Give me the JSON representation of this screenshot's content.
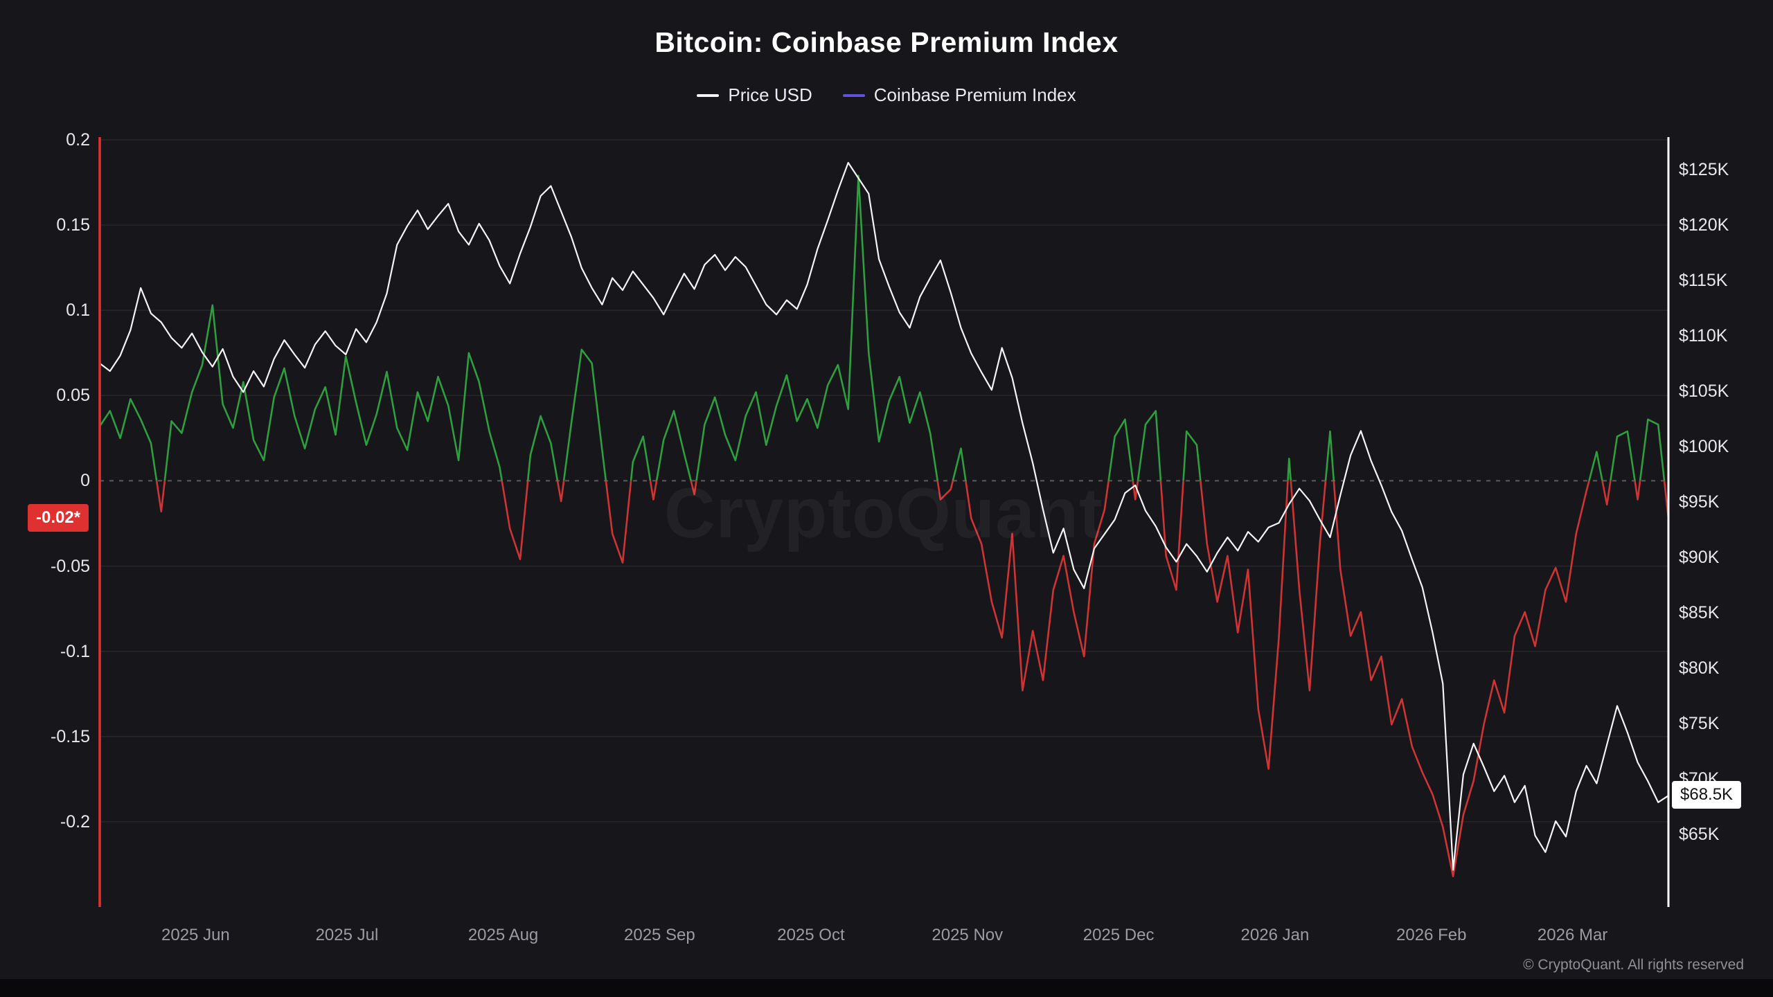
{
  "title": "Bitcoin: Coinbase Premium Index",
  "watermark": "CryptoQuant",
  "copyright": "© CryptoQuant. All rights reserved",
  "legend": {
    "items": [
      {
        "label": "Price USD",
        "color": "#f5f5f5"
      },
      {
        "label": "Coinbase Premium Index",
        "color": "#6053d8"
      }
    ]
  },
  "badges": {
    "premium_current": {
      "text": "-0.02*",
      "value": -0.022,
      "bg": "#e03131",
      "fg": "#ffffff"
    },
    "price_current": {
      "text": "$68.5K",
      "value_k": 68.5,
      "bg": "#ffffff",
      "fg": "#141414"
    }
  },
  "colors": {
    "background": "#17171b",
    "bottom_bar": "#09090b",
    "grid_faint": "rgba(255,255,255,0.07)",
    "zero_dashed": "rgba(255,255,255,0.30)",
    "left_edge_line": "#e03131",
    "right_edge_line": "#ffffff",
    "x_label": "#9b9ba1"
  },
  "chart_data": {
    "type": "line",
    "title": "Bitcoin: Coinbase Premium Index",
    "x_start": "2025-05-13",
    "x_end": "2026-03-20",
    "legend_position": "top-center",
    "grid": "faint horizontal lines at left-axis ticks; dashed line at 0; red vertical line at left edge; white vertical line at right edge",
    "x_ticks": [
      {
        "label": "2025 Jun",
        "f": 0.0611
      },
      {
        "label": "2025 Jul",
        "f": 0.1576
      },
      {
        "label": "2025 Aug",
        "f": 0.2572
      },
      {
        "label": "2025 Sep",
        "f": 0.3569
      },
      {
        "label": "2025 Oct",
        "f": 0.4534
      },
      {
        "label": "2025 Nov",
        "f": 0.5531
      },
      {
        "label": "2025 Dec",
        "f": 0.6495
      },
      {
        "label": "2026 Jan",
        "f": 0.7492
      },
      {
        "label": "2026 Feb",
        "f": 0.8489
      },
      {
        "label": "2026 Mar",
        "f": 0.9389
      }
    ],
    "left_axis": {
      "name": "Coinbase Premium Index",
      "range": [
        -0.25,
        0.2
      ],
      "zero_line": "dashed",
      "ticks": [
        {
          "label": "0.2",
          "value": 0.2
        },
        {
          "label": "0.15",
          "value": 0.15
        },
        {
          "label": "0.1",
          "value": 0.1
        },
        {
          "label": "0.05",
          "value": 0.05
        },
        {
          "label": "0",
          "value": 0
        },
        {
          "label": "-0.05",
          "value": -0.05
        },
        {
          "label": "-0.1",
          "value": -0.1
        },
        {
          "label": "-0.15",
          "value": -0.15
        },
        {
          "label": "-0.2",
          "value": -0.2
        }
      ]
    },
    "right_axis": {
      "name": "Price USD",
      "range_k": [
        58.5,
        128
      ],
      "ticks": [
        {
          "label": "$125K",
          "value_k": 125
        },
        {
          "label": "$120K",
          "value_k": 120
        },
        {
          "label": "$115K",
          "value_k": 115
        },
        {
          "label": "$110K",
          "value_k": 110
        },
        {
          "label": "$105K",
          "value_k": 105
        },
        {
          "label": "$100K",
          "value_k": 100
        },
        {
          "label": "$95K",
          "value_k": 95
        },
        {
          "label": "$90K",
          "value_k": 90
        },
        {
          "label": "$85K",
          "value_k": 85
        },
        {
          "label": "$80K",
          "value_k": 80
        },
        {
          "label": "$75K",
          "value_k": 75
        },
        {
          "label": "$70K",
          "value_k": 70
        },
        {
          "label": "$65K",
          "value_k": 65
        }
      ]
    },
    "series": [
      {
        "name": "Price USD",
        "axis": "right",
        "unit": "USD (thousands)",
        "color": "#f5f5f5",
        "values_k": [
          107.5,
          106.8,
          108.2,
          110.5,
          114.3,
          112.0,
          111.2,
          109.8,
          108.9,
          110.2,
          108.5,
          107.2,
          108.8,
          106.3,
          104.9,
          106.8,
          105.4,
          107.9,
          109.6,
          108.3,
          107.1,
          109.2,
          110.4,
          109.1,
          108.3,
          110.6,
          109.4,
          111.2,
          113.8,
          118.2,
          119.9,
          121.3,
          119.6,
          120.8,
          121.9,
          119.4,
          118.2,
          120.1,
          118.6,
          116.3,
          114.7,
          117.4,
          119.8,
          122.6,
          123.5,
          121.2,
          118.9,
          116.1,
          114.3,
          112.8,
          115.2,
          114.1,
          115.8,
          114.6,
          113.4,
          111.9,
          113.8,
          115.6,
          114.2,
          116.4,
          117.3,
          115.9,
          117.1,
          116.2,
          114.5,
          112.8,
          111.9,
          113.2,
          112.4,
          114.6,
          117.8,
          120.4,
          123.1,
          125.6,
          124.2,
          122.8,
          116.9,
          114.4,
          112.1,
          110.7,
          113.5,
          115.2,
          116.8,
          113.9,
          110.7,
          108.4,
          106.7,
          105.1,
          108.9,
          106.2,
          102.1,
          98.5,
          94.3,
          90.4,
          92.6,
          88.9,
          87.2,
          90.8,
          92.1,
          93.4,
          95.8,
          96.5,
          94.2,
          92.8,
          90.9,
          89.6,
          91.2,
          90.1,
          88.7,
          90.4,
          91.8,
          90.6,
          92.3,
          91.4,
          92.7,
          93.1,
          94.8,
          96.2,
          95.1,
          93.4,
          91.8,
          95.6,
          99.2,
          101.4,
          98.7,
          96.5,
          94.1,
          92.4,
          89.8,
          87.3,
          83.2,
          78.6,
          61.8,
          70.4,
          73.2,
          71.1,
          68.9,
          70.3,
          67.9,
          69.4,
          64.9,
          63.4,
          66.2,
          64.8,
          68.9,
          71.2,
          69.6,
          73.1,
          76.6,
          74.2,
          71.5,
          69.8,
          67.9,
          68.5
        ]
      },
      {
        "name": "Coinbase Premium Index",
        "axis": "left",
        "positive_color": "#2e9e3f",
        "negative_color": "#cf3434",
        "values": [
          0.032,
          0.041,
          0.025,
          0.048,
          0.036,
          0.022,
          -0.018,
          0.035,
          0.028,
          0.052,
          0.068,
          0.103,
          0.045,
          0.031,
          0.058,
          0.024,
          0.012,
          0.049,
          0.066,
          0.038,
          0.019,
          0.042,
          0.055,
          0.027,
          0.073,
          0.046,
          0.021,
          0.039,
          0.064,
          0.031,
          0.018,
          0.052,
          0.035,
          0.061,
          0.044,
          0.012,
          0.075,
          0.058,
          0.029,
          0.008,
          -0.028,
          -0.046,
          0.015,
          0.038,
          0.022,
          -0.012,
          0.034,
          0.077,
          0.069,
          0.018,
          -0.031,
          -0.048,
          0.011,
          0.026,
          -0.011,
          0.024,
          0.041,
          0.016,
          -0.008,
          0.033,
          0.049,
          0.027,
          0.012,
          0.038,
          0.052,
          0.021,
          0.044,
          0.062,
          0.035,
          0.048,
          0.031,
          0.056,
          0.068,
          0.042,
          0.179,
          0.075,
          0.023,
          0.047,
          0.061,
          0.034,
          0.052,
          0.028,
          -0.011,
          -0.005,
          0.019,
          -0.022,
          -0.037,
          -0.071,
          -0.092,
          -0.031,
          -0.123,
          -0.088,
          -0.117,
          -0.064,
          -0.044,
          -0.077,
          -0.103,
          -0.037,
          -0.017,
          0.026,
          0.036,
          -0.011,
          0.033,
          0.041,
          -0.044,
          -0.064,
          0.029,
          0.021,
          -0.037,
          -0.071,
          -0.044,
          -0.089,
          -0.052,
          -0.134,
          -0.169,
          -0.092,
          0.013,
          -0.064,
          -0.123,
          -0.037,
          0.029,
          -0.052,
          -0.091,
          -0.077,
          -0.117,
          -0.103,
          -0.143,
          -0.128,
          -0.156,
          -0.171,
          -0.184,
          -0.203,
          -0.232,
          -0.196,
          -0.176,
          -0.143,
          -0.117,
          -0.136,
          -0.091,
          -0.077,
          -0.097,
          -0.064,
          -0.051,
          -0.071,
          -0.031,
          -0.006,
          0.017,
          -0.014,
          0.026,
          0.029,
          -0.011,
          0.036,
          0.033,
          -0.022
        ]
      }
    ]
  }
}
